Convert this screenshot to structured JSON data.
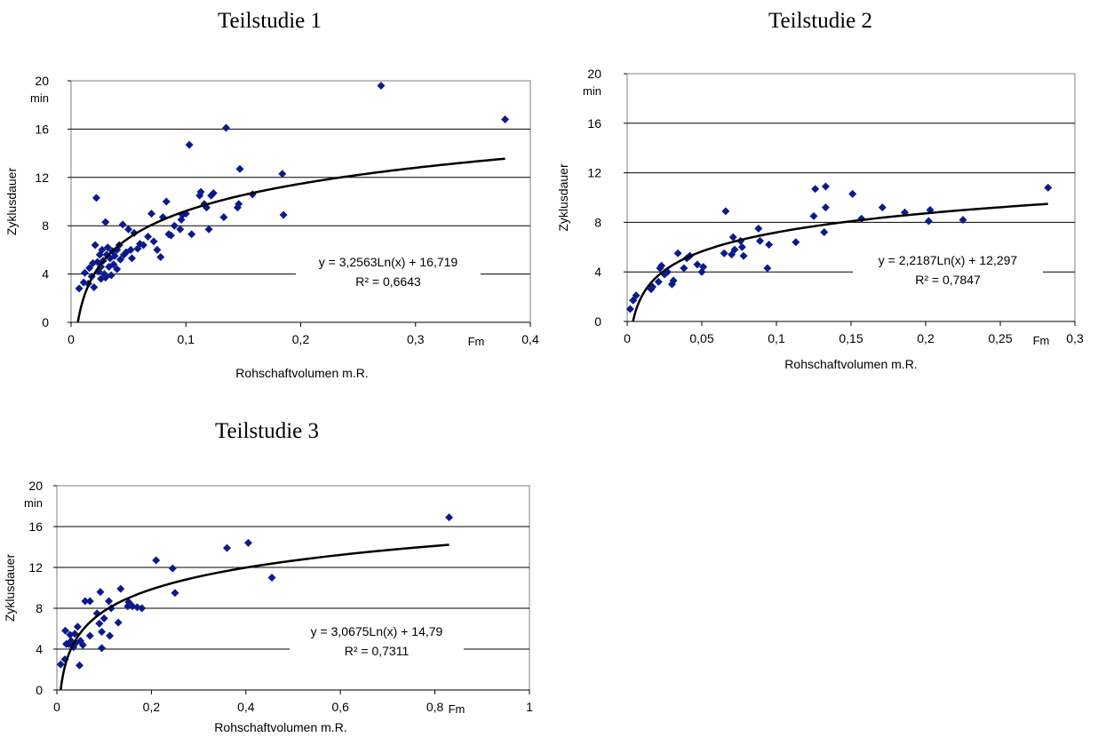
{
  "colors": {
    "marker": "#0b1a8c",
    "trendline": "#000000",
    "grid": "#000000",
    "axis": "#808080"
  },
  "chart_data": [
    {
      "type": "scatter",
      "title": "Teilstudie 1",
      "xlabel": "Rohschaftvolumen m.R.",
      "ylabel": "Zyklusdauer",
      "x_unit": "Fm",
      "y_unit": "min",
      "xlim": [
        0,
        0.4
      ],
      "ylim": [
        0,
        20
      ],
      "x_ticks": [
        0,
        0.1,
        0.2,
        0.3,
        0.4
      ],
      "x_tick_labels": [
        "0",
        "0,1",
        "0,2",
        "0,3",
        "0,4"
      ],
      "y_ticks": [
        0,
        4,
        8,
        12,
        16,
        20
      ],
      "y_tick_labels": [
        "0",
        "4",
        "8",
        "12",
        "16",
        "20"
      ],
      "grid": "horizontal",
      "trendline": {
        "type": "logarithmic",
        "a": 3.2563,
        "b": 16.719,
        "equation": "y = 3,2563Ln(x) + 16,719",
        "r2_label": "R² = 0,6643"
      },
      "points": [
        [
          0.007,
          2.8
        ],
        [
          0.011,
          3.3
        ],
        [
          0.012,
          4.1
        ],
        [
          0.015,
          3.2
        ],
        [
          0.016,
          4.5
        ],
        [
          0.018,
          3.8
        ],
        [
          0.019,
          4.9
        ],
        [
          0.02,
          2.9
        ],
        [
          0.021,
          6.4
        ],
        [
          0.022,
          10.3
        ],
        [
          0.023,
          5.0
        ],
        [
          0.024,
          4.2
        ],
        [
          0.025,
          5.6
        ],
        [
          0.026,
          3.6
        ],
        [
          0.026,
          4.6
        ],
        [
          0.027,
          6.0
        ],
        [
          0.028,
          5.1
        ],
        [
          0.029,
          4.0
        ],
        [
          0.03,
          3.7
        ],
        [
          0.03,
          8.3
        ],
        [
          0.031,
          5.6
        ],
        [
          0.032,
          6.2
        ],
        [
          0.033,
          4.6
        ],
        [
          0.034,
          5.3
        ],
        [
          0.035,
          3.9
        ],
        [
          0.036,
          5.9
        ],
        [
          0.037,
          4.8
        ],
        [
          0.038,
          5.5
        ],
        [
          0.04,
          6.0
        ],
        [
          0.04,
          4.4
        ],
        [
          0.042,
          6.4
        ],
        [
          0.043,
          5.2
        ],
        [
          0.045,
          8.1
        ],
        [
          0.046,
          5.6
        ],
        [
          0.048,
          5.8
        ],
        [
          0.05,
          7.7
        ],
        [
          0.052,
          6.0
        ],
        [
          0.053,
          5.3
        ],
        [
          0.055,
          7.4
        ],
        [
          0.058,
          6.1
        ],
        [
          0.06,
          6.5
        ],
        [
          0.063,
          6.4
        ],
        [
          0.067,
          7.1
        ],
        [
          0.07,
          9.0
        ],
        [
          0.072,
          6.7
        ],
        [
          0.075,
          6.0
        ],
        [
          0.078,
          5.4
        ],
        [
          0.08,
          8.7
        ],
        [
          0.083,
          10.0
        ],
        [
          0.085,
          7.3
        ],
        [
          0.087,
          7.2
        ],
        [
          0.09,
          8.0
        ],
        [
          0.095,
          7.7
        ],
        [
          0.096,
          8.5
        ],
        [
          0.097,
          8.9
        ],
        [
          0.1,
          9.0
        ],
        [
          0.103,
          14.7
        ],
        [
          0.105,
          7.3
        ],
        [
          0.112,
          10.5
        ],
        [
          0.113,
          10.8
        ],
        [
          0.116,
          9.8
        ],
        [
          0.118,
          9.5
        ],
        [
          0.12,
          7.7
        ],
        [
          0.122,
          10.5
        ],
        [
          0.124,
          10.7
        ],
        [
          0.133,
          8.7
        ],
        [
          0.135,
          16.1
        ],
        [
          0.145,
          9.5
        ],
        [
          0.146,
          9.8
        ],
        [
          0.147,
          12.7
        ],
        [
          0.158,
          10.6
        ],
        [
          0.184,
          12.3
        ],
        [
          0.185,
          8.9
        ],
        [
          0.27,
          19.6
        ],
        [
          0.378,
          16.8
        ]
      ]
    },
    {
      "type": "scatter",
      "title": "Teilstudie 2",
      "xlabel": "Rohschaftvolumen m.R.",
      "ylabel": "Zyklusdauer",
      "x_unit": "Fm",
      "y_unit": "min",
      "xlim": [
        0,
        0.3
      ],
      "ylim": [
        0,
        20
      ],
      "x_ticks": [
        0,
        0.05,
        0.1,
        0.15,
        0.2,
        0.25,
        0.3
      ],
      "x_tick_labels": [
        "0",
        "0,05",
        "0,1",
        "0,15",
        "0,2",
        "0,25",
        "0,3"
      ],
      "y_ticks": [
        0,
        4,
        8,
        12,
        16,
        20
      ],
      "y_tick_labels": [
        "0",
        "4",
        "8",
        "12",
        "16",
        "20"
      ],
      "grid": "horizontal",
      "trendline": {
        "type": "logarithmic",
        "a": 2.2187,
        "b": 12.297,
        "equation": "y = 2,2187Ln(x) + 12,297",
        "r2_label": "R² = 0,7847"
      },
      "points": [
        [
          0.002,
          1.0
        ],
        [
          0.004,
          1.7
        ],
        [
          0.006,
          2.1
        ],
        [
          0.016,
          2.6
        ],
        [
          0.017,
          2.8
        ],
        [
          0.021,
          3.2
        ],
        [
          0.022,
          4.3
        ],
        [
          0.023,
          4.5
        ],
        [
          0.025,
          3.8
        ],
        [
          0.027,
          4.0
        ],
        [
          0.03,
          3.0
        ],
        [
          0.031,
          3.3
        ],
        [
          0.034,
          5.5
        ],
        [
          0.038,
          4.3
        ],
        [
          0.04,
          5.1
        ],
        [
          0.042,
          5.3
        ],
        [
          0.047,
          4.6
        ],
        [
          0.05,
          4.0
        ],
        [
          0.051,
          4.4
        ],
        [
          0.065,
          5.5
        ],
        [
          0.066,
          8.9
        ],
        [
          0.07,
          5.4
        ],
        [
          0.071,
          6.8
        ],
        [
          0.072,
          5.8
        ],
        [
          0.076,
          6.5
        ],
        [
          0.077,
          6.0
        ],
        [
          0.078,
          5.3
        ],
        [
          0.088,
          7.5
        ],
        [
          0.089,
          6.5
        ],
        [
          0.094,
          4.3
        ],
        [
          0.095,
          6.2
        ],
        [
          0.113,
          6.4
        ],
        [
          0.125,
          8.5
        ],
        [
          0.126,
          10.7
        ],
        [
          0.132,
          7.2
        ],
        [
          0.133,
          9.2
        ],
        [
          0.133,
          10.9
        ],
        [
          0.151,
          10.3
        ],
        [
          0.157,
          8.3
        ],
        [
          0.171,
          9.2
        ],
        [
          0.186,
          8.8
        ],
        [
          0.202,
          8.1
        ],
        [
          0.203,
          9.0
        ],
        [
          0.225,
          8.2
        ],
        [
          0.282,
          10.8
        ]
      ]
    },
    {
      "type": "scatter",
      "title": "Teilstudie 3",
      "xlabel": "Rohschaftvolumen m.R.",
      "ylabel": "Zyklusdauer",
      "x_unit": "Fm",
      "y_unit": "min",
      "xlim": [
        0,
        1
      ],
      "ylim": [
        0,
        20
      ],
      "x_ticks": [
        0,
        0.2,
        0.4,
        0.6,
        0.8,
        1
      ],
      "x_tick_labels": [
        "0",
        "0,2",
        "0,4",
        "0,6",
        "0,8",
        "1"
      ],
      "y_ticks": [
        0,
        4,
        8,
        12,
        16,
        20
      ],
      "y_tick_labels": [
        "0",
        "4",
        "8",
        "12",
        "16",
        "20"
      ],
      "grid": "horizontal",
      "trendline": {
        "type": "logarithmic",
        "a": 3.0675,
        "b": 14.79,
        "equation": "y = 3,0675Ln(x) + 14,79",
        "r2_label": "R² = 0,7311"
      },
      "points": [
        [
          0.008,
          2.5
        ],
        [
          0.017,
          3.0
        ],
        [
          0.018,
          5.8
        ],
        [
          0.02,
          4.5
        ],
        [
          0.025,
          4.5
        ],
        [
          0.028,
          5.4
        ],
        [
          0.03,
          4.8
        ],
        [
          0.035,
          4.2
        ],
        [
          0.038,
          5.5
        ],
        [
          0.04,
          4.6
        ],
        [
          0.044,
          6.2
        ],
        [
          0.048,
          2.4
        ],
        [
          0.05,
          4.8
        ],
        [
          0.055,
          4.4
        ],
        [
          0.06,
          8.7
        ],
        [
          0.07,
          8.7
        ],
        [
          0.07,
          5.3
        ],
        [
          0.085,
          7.5
        ],
        [
          0.09,
          6.5
        ],
        [
          0.092,
          9.6
        ],
        [
          0.095,
          5.7
        ],
        [
          0.095,
          4.1
        ],
        [
          0.1,
          7.0
        ],
        [
          0.11,
          8.7
        ],
        [
          0.112,
          5.3
        ],
        [
          0.115,
          8.0
        ],
        [
          0.13,
          6.6
        ],
        [
          0.135,
          9.9
        ],
        [
          0.15,
          8.2
        ],
        [
          0.152,
          8.6
        ],
        [
          0.16,
          8.2
        ],
        [
          0.17,
          8.1
        ],
        [
          0.18,
          8.0
        ],
        [
          0.21,
          12.7
        ],
        [
          0.245,
          11.9
        ],
        [
          0.25,
          9.5
        ],
        [
          0.36,
          13.9
        ],
        [
          0.405,
          14.4
        ],
        [
          0.455,
          11.0
        ],
        [
          0.83,
          16.9
        ]
      ]
    }
  ]
}
